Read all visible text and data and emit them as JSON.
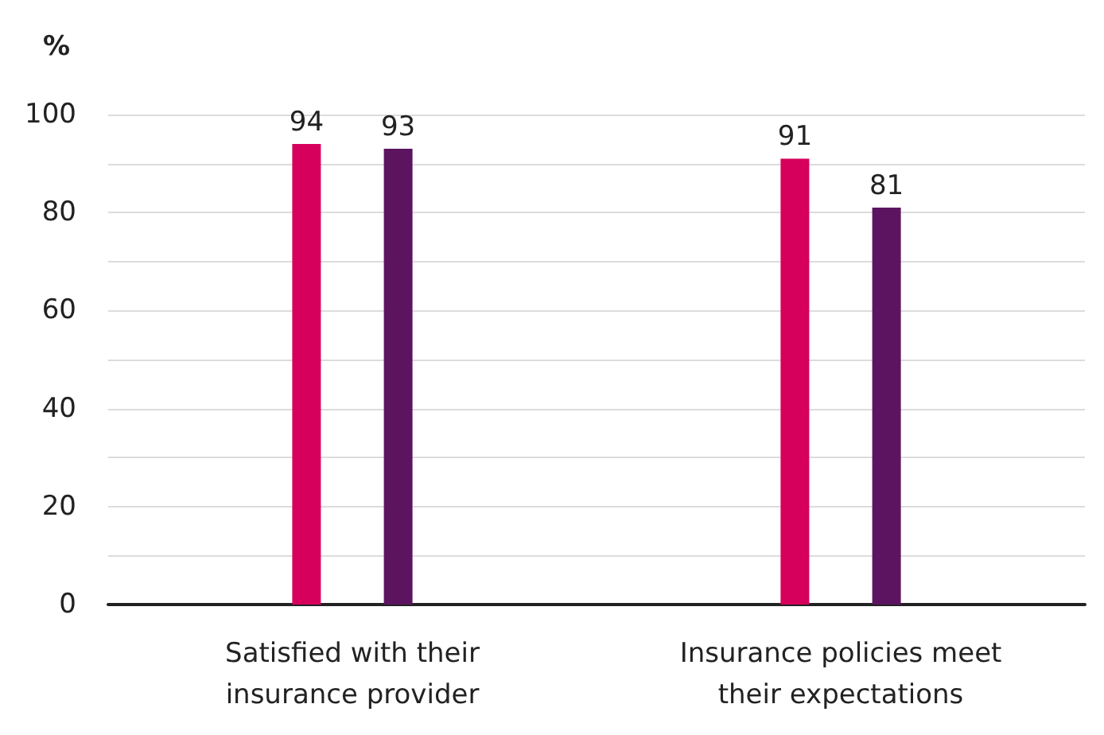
{
  "chart_data": {
    "type": "bar",
    "ylabel": "%",
    "categories": [
      "Satisfied with their\ninsurance provider",
      "Insurance policies meet\ntheir expectations"
    ],
    "series": [
      {
        "color": "#d6005c",
        "values": [
          94,
          91
        ]
      },
      {
        "color": "#5c1460",
        "values": [
          93,
          81
        ]
      }
    ],
    "ylim": [
      0,
      100
    ],
    "yticks": [
      0,
      {
        "value": 10,
        "label": null
      },
      20,
      {
        "value": 30,
        "label": null
      },
      40,
      {
        "value": 50,
        "label": null
      },
      60,
      {
        "value": 70,
        "label": null
      },
      80,
      {
        "value": 90,
        "label": null
      },
      100
    ],
    "grid": "y",
    "data_labels": true
  }
}
